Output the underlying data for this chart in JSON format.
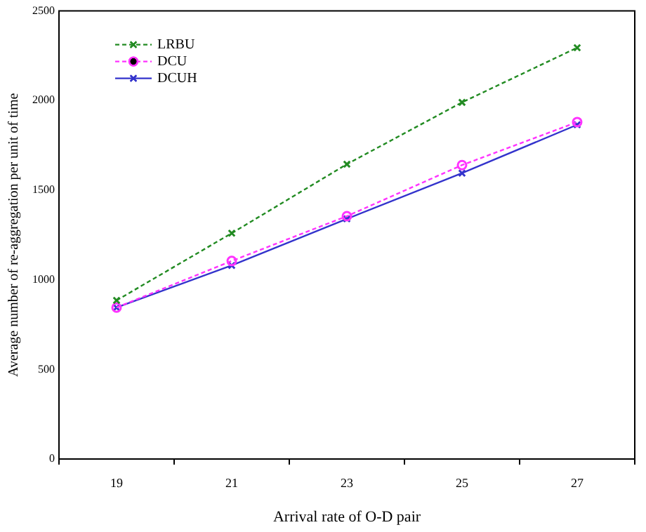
{
  "chart_data": {
    "type": "line",
    "xlabel": "Arrival rate of O-D pair",
    "ylabel": "Average number of re-aggregation per unit of time",
    "x": [
      19,
      21,
      23,
      25,
      27
    ],
    "series": [
      {
        "name": "LRBU",
        "color": "#228b22",
        "values": [
          885,
          1260,
          1645,
          1990,
          2295
        ],
        "marker": "cross",
        "line_style": "dashed"
      },
      {
        "name": "DCU",
        "color": "#ff33ff",
        "values": [
          845,
          1105,
          1355,
          1640,
          1880
        ],
        "marker": "circle",
        "line_style": "dashed"
      },
      {
        "name": "DCUH",
        "color": "#3333cc",
        "values": [
          845,
          1080,
          1340,
          1595,
          1865
        ],
        "marker": "cross",
        "line_style": "solid"
      }
    ],
    "xlim": [
      18,
      28
    ],
    "xticks": [
      {
        "value": 18,
        "label": null
      },
      19,
      {
        "value": 20,
        "label": null
      },
      21,
      {
        "value": 22,
        "label": null
      },
      23,
      {
        "value": 24,
        "label": null
      },
      25,
      {
        "value": 26,
        "label": null
      },
      27,
      {
        "value": 28,
        "label": null
      }
    ],
    "ylim": [
      0,
      2500
    ],
    "yticks": [
      0,
      500,
      1000,
      1500,
      2000,
      2500
    ],
    "grid": false,
    "legend": "top left"
  }
}
